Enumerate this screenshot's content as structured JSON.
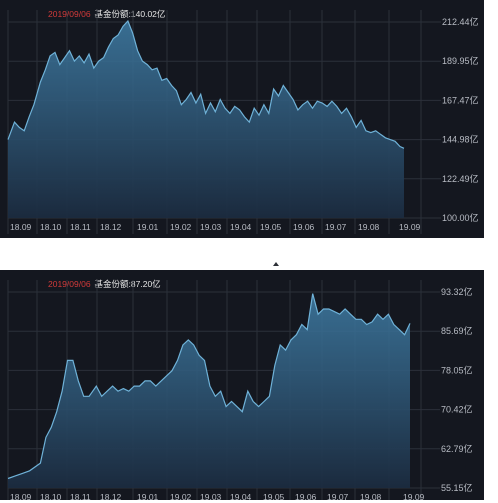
{
  "chart_data": [
    {
      "type": "area",
      "title_date": "2019/09/06",
      "title_label": "基金份额:140.02亿",
      "x_ticks": [
        "18.09",
        "18.10",
        "18.11",
        "18.12",
        "19.01",
        "19.02",
        "19.03",
        "19.04",
        "19.05",
        "19.06",
        "19.07",
        "19.08",
        "19.09"
      ],
      "y_ticks": [
        "212.44亿",
        "189.95亿",
        "167.47亿",
        "144.98亿",
        "122.49亿",
        "100.00亿"
      ],
      "ylim": [
        100.0,
        212.44
      ],
      "grid": true,
      "color": "#6fb2d8",
      "x": [
        "18.09",
        "18.09",
        "18.09",
        "18.09",
        "18.09",
        "18.10",
        "18.10",
        "18.10",
        "18.10",
        "18.10",
        "18.10",
        "18.10",
        "18.10",
        "18.10",
        "18.11",
        "18.11",
        "18.11",
        "18.11",
        "18.11",
        "18.11",
        "18.11",
        "18.11",
        "18.12",
        "18.12",
        "18.12",
        "18.12",
        "18.12",
        "18.12",
        "18.12",
        "19.01",
        "19.01",
        "19.01",
        "19.01",
        "19.01",
        "19.01",
        "19.01",
        "19.02",
        "19.02",
        "19.02",
        "19.02",
        "19.02",
        "19.02",
        "19.03",
        "19.03",
        "19.03",
        "19.03",
        "19.03",
        "19.03",
        "19.04",
        "19.04",
        "19.04",
        "19.04",
        "19.04",
        "19.04",
        "19.04",
        "19.05",
        "19.05",
        "19.05",
        "19.05",
        "19.05",
        "19.05",
        "19.05",
        "19.06",
        "19.06",
        "19.06",
        "19.06",
        "19.06",
        "19.06",
        "19.07",
        "19.07",
        "19.07",
        "19.07",
        "19.07",
        "19.07",
        "19.08",
        "19.08",
        "19.08",
        "19.08",
        "19.08",
        "19.08",
        "19.09",
        "19.09"
      ],
      "values": [
        145,
        155,
        152,
        150,
        158,
        165,
        178,
        185,
        193,
        195,
        188,
        192,
        196,
        190,
        193,
        189,
        194,
        186,
        190,
        192,
        198,
        203,
        205,
        210,
        213,
        206,
        196,
        190,
        188,
        185,
        186,
        179,
        180,
        176,
        173,
        165,
        168,
        172,
        166,
        171,
        160,
        166,
        161,
        168,
        163,
        160,
        164,
        162,
        158,
        155,
        163,
        159,
        165,
        160,
        174,
        170,
        176,
        172,
        168,
        162,
        165,
        167,
        163,
        167,
        166,
        164,
        167,
        164,
        160,
        163,
        158,
        152,
        156,
        150,
        149,
        150,
        148,
        146,
        145,
        144,
        141,
        140
      ],
      "hx": [
        0,
        8,
        14,
        20,
        26,
        32,
        40,
        46,
        52,
        58,
        64,
        70,
        76,
        82,
        88,
        94,
        100,
        106,
        112,
        118,
        124,
        130,
        136,
        142,
        148,
        154,
        160,
        166,
        172,
        178,
        184,
        190,
        196,
        202,
        208,
        214,
        220,
        226,
        232,
        238,
        244,
        250,
        256,
        262,
        268,
        274,
        280,
        286,
        292,
        298,
        304,
        310,
        316,
        322,
        328,
        334,
        340,
        346,
        352,
        358,
        364,
        370,
        376,
        382,
        388,
        394,
        400,
        406,
        412,
        418,
        424,
        430,
        436,
        442,
        448,
        454,
        460,
        466,
        472,
        478,
        484,
        489
      ]
    },
    {
      "type": "area",
      "title_date": "2019/09/06",
      "title_label": "基金份额:87.20亿",
      "x_ticks": [
        "18.09",
        "18.10",
        "18.11",
        "18.12",
        "19.01",
        "19.02",
        "19.03",
        "19.04",
        "19.05",
        "19.06",
        "19.07",
        "19.08",
        "19.09"
      ],
      "y_ticks": [
        "93.32亿",
        "85.69亿",
        "78.05亿",
        "70.42亿",
        "62.79亿",
        "55.15亿"
      ],
      "ylim": [
        55.15,
        93.32
      ],
      "grid": true,
      "color": "#6fb2d8",
      "x": [
        "18.09",
        "18.09",
        "18.09",
        "18.09",
        "18.10",
        "18.10",
        "18.10",
        "18.10",
        "18.10",
        "18.10",
        "18.10",
        "18.11",
        "18.11",
        "18.11",
        "18.11",
        "18.11",
        "18.11",
        "18.11",
        "18.12",
        "18.12",
        "18.12",
        "18.12",
        "18.12",
        "18.12",
        "19.01",
        "19.01",
        "19.01",
        "19.01",
        "19.01",
        "19.01",
        "19.01",
        "19.02",
        "19.02",
        "19.02",
        "19.02",
        "19.02",
        "19.02",
        "19.03",
        "19.03",
        "19.03",
        "19.03",
        "19.03",
        "19.03",
        "19.04",
        "19.04",
        "19.04",
        "19.04",
        "19.04",
        "19.05",
        "19.05",
        "19.05",
        "19.05",
        "19.05",
        "19.05",
        "19.06",
        "19.06",
        "19.06",
        "19.06",
        "19.06",
        "19.06",
        "19.07",
        "19.07",
        "19.07",
        "19.07",
        "19.07",
        "19.07",
        "19.08",
        "19.08",
        "19.08",
        "19.08",
        "19.08",
        "19.08",
        "19.09"
      ],
      "values": [
        57,
        57.5,
        58,
        58.5,
        60,
        65,
        67,
        70,
        74,
        80,
        80,
        76,
        73,
        73,
        75,
        73,
        74,
        75,
        74,
        74.5,
        74,
        75,
        75,
        76,
        76,
        75,
        76,
        77,
        78,
        80,
        83,
        84,
        83,
        81,
        80,
        75,
        73,
        74,
        71,
        72,
        71,
        70,
        74,
        72,
        71,
        72,
        73,
        79,
        83,
        82,
        84,
        85,
        87,
        86,
        93,
        89,
        90,
        90,
        89.5,
        89,
        90,
        89,
        88,
        88,
        87,
        87.5,
        89,
        88,
        89,
        87,
        86,
        85,
        87.2
      ],
      "hx": [
        0,
        8,
        16,
        24,
        36,
        42,
        48,
        54,
        60,
        66,
        72,
        78,
        84,
        90,
        98,
        104,
        110,
        116,
        122,
        128,
        134,
        140,
        146,
        152,
        158,
        164,
        170,
        176,
        182,
        188,
        194,
        200,
        206,
        212,
        218,
        224,
        230,
        236,
        242,
        248,
        254,
        260,
        266,
        272,
        278,
        284,
        290,
        296,
        302,
        308,
        314,
        320,
        326,
        332,
        338,
        344,
        350,
        356,
        362,
        368,
        374,
        380,
        386,
        392,
        398,
        404,
        410,
        416,
        422,
        428,
        434,
        440,
        446
      ]
    }
  ]
}
